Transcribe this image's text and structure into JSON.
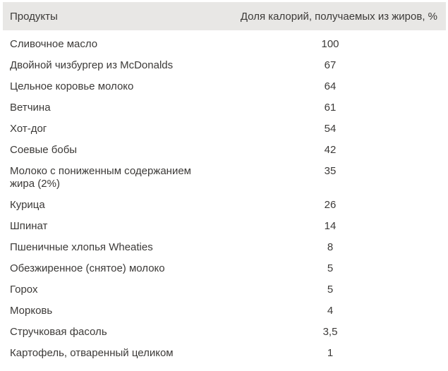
{
  "colors": {
    "header_bg": "#e8e7e5",
    "text": "#3c3a38",
    "page_bg": "#ffffff"
  },
  "table": {
    "columns": {
      "product": "Продукты",
      "value": "Доля калорий, получаемых из жиров, %"
    },
    "rows": [
      {
        "label": "Сливочное масло",
        "value": "100"
      },
      {
        "label": "Двойной чизбургер из McDonalds",
        "value": "67"
      },
      {
        "label": "Цельное коровье молоко",
        "value": "64"
      },
      {
        "label": "Ветчина",
        "value": "61"
      },
      {
        "label": "Хот-дог",
        "value": "54"
      },
      {
        "label": "Соевые бобы",
        "value": "42"
      },
      {
        "label": "Молоко с пониженным содержанием жира (2%)",
        "value": "35"
      },
      {
        "label": "Курица",
        "value": "26"
      },
      {
        "label": "Шпинат",
        "value": "14"
      },
      {
        "label": "Пшеничные хлопья Wheaties",
        "value": "8"
      },
      {
        "label": "Обезжиренное (снятое) молоко",
        "value": "5"
      },
      {
        "label": "Горох",
        "value": "5"
      },
      {
        "label": "Морковь",
        "value": "4"
      },
      {
        "label": "Стручковая фасоль",
        "value": "3,5"
      },
      {
        "label": "Картофель, отваренный целиком",
        "value": "1"
      }
    ]
  },
  "chart_data": {
    "type": "table",
    "title": "",
    "columns": [
      "Продукты",
      "Доля калорий, получаемых из жиров, %"
    ],
    "categories": [
      "Сливочное масло",
      "Двойной чизбургер из McDonalds",
      "Цельное коровье молоко",
      "Ветчина",
      "Хот-дог",
      "Соевые бобы",
      "Молоко с пониженным содержанием жира (2%)",
      "Курица",
      "Шпинат",
      "Пшеничные хлопья Wheaties",
      "Обезжиренное (снятое) молоко",
      "Горох",
      "Морковь",
      "Стручковая фасоль",
      "Картофель, отваренный целиком"
    ],
    "values": [
      100,
      67,
      64,
      61,
      54,
      42,
      35,
      26,
      14,
      8,
      5,
      5,
      4,
      3.5,
      1
    ]
  }
}
